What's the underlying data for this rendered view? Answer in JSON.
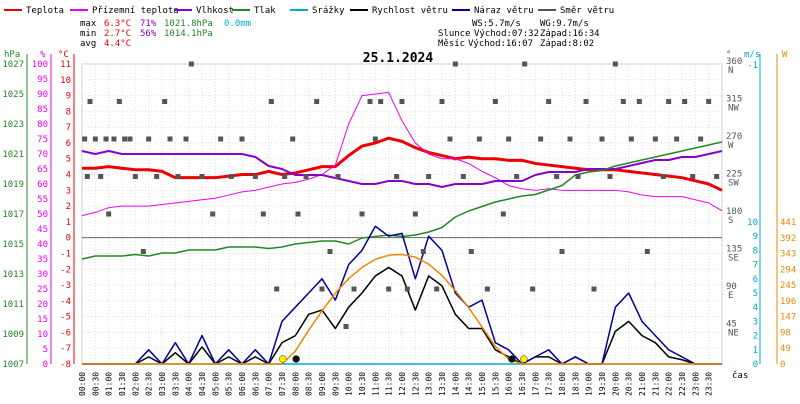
{
  "chart_data": {
    "type": "line",
    "title": "25.1.2024",
    "legend": [
      {
        "label": "Teplota",
        "color": "#ee0000"
      },
      {
        "label": "Přízemní teplota",
        "color": "#ee00ee"
      },
      {
        "label": "Vlhkost",
        "color": "#8800cc"
      },
      {
        "label": "Tlak",
        "color": "#228822"
      },
      {
        "label": "Srážky",
        "color": "#00aacc"
      },
      {
        "label": "Rychlost větru",
        "color": "#000000"
      },
      {
        "label": "Náraz větru",
        "color": "#000099"
      },
      {
        "label": "Směr větru",
        "color": "#555555"
      }
    ],
    "stats": {
      "rows": [
        {
          "label": "max",
          "temp": "6.3°C",
          "hum": "71%",
          "press": "1021.8hPa",
          "rain": "0.0mm"
        },
        {
          "label": "min",
          "temp": "2.7°C",
          "hum": "56%",
          "press": "1014.1hPa",
          "rain": ""
        },
        {
          "label": "avg",
          "temp": "4.4°C",
          "hum": "",
          "press": "",
          "rain": ""
        }
      ],
      "ws": "WS:5.7m/s",
      "wg": "WG:9.7m/s",
      "sun": {
        "label": "Slunce",
        "rise": "Východ:07:32",
        "set": "Západ:16:34"
      },
      "moon": {
        "label": "Měsíc",
        "rise": "Východ:16:07",
        "set": "Západ:8:02"
      }
    },
    "axes": {
      "hpa": {
        "label": "hPa",
        "ticks": [
          "1007",
          "1009",
          "1011",
          "1013",
          "1015",
          "1017",
          "1019",
          "1021",
          "1023",
          "1025",
          "1027"
        ]
      },
      "pct": {
        "label": "%",
        "ticks": [
          "0",
          "5",
          "10",
          "15",
          "20",
          "25",
          "30",
          "35",
          "40",
          "45",
          "50",
          "55",
          "60",
          "65",
          "70",
          "75",
          "80",
          "85",
          "90",
          "95",
          "100"
        ]
      },
      "temp": {
        "label": "°C",
        "ticks": [
          "-8",
          "-7",
          "-6",
          "-5",
          "-4",
          "-3",
          "-2",
          "-1",
          "0",
          "1",
          "2",
          "3",
          "4",
          "5",
          "6",
          "7",
          "8",
          "9",
          "10",
          "11"
        ],
        "ylim": [
          -8,
          11
        ]
      },
      "dir": {
        "label": "°",
        "ticks": [
          {
            "v": 45,
            "t": "45",
            "c": "NE"
          },
          {
            "v": 90,
            "t": "90",
            "c": "E"
          },
          {
            "v": 135,
            "t": "135",
            "c": "SE"
          },
          {
            "v": 180,
            "t": "180",
            "c": "S"
          },
          {
            "v": 225,
            "t": "225",
            "c": "SW"
          },
          {
            "v": 270,
            "t": "270",
            "c": "W"
          },
          {
            "v": 315,
            "t": "315",
            "c": "NW"
          },
          {
            "v": 360,
            "t": "360",
            "c": "N"
          }
        ]
      },
      "ms": {
        "label": "m/s",
        "ticks": [
          "0",
          "1",
          "2",
          "3",
          "4",
          "5",
          "6",
          "7",
          "8",
          "9",
          "10"
        ],
        "extra": "-1"
      },
      "wm2": {
        "label": "W",
        "ticks": [
          "0",
          "49",
          "98",
          "147",
          "196",
          "245",
          "294",
          "343",
          "392",
          "441"
        ]
      },
      "x": {
        "label": "čas",
        "ticks": [
          "00:00",
          "00:30",
          "01:00",
          "01:30",
          "02:00",
          "02:30",
          "03:00",
          "03:30",
          "04:00",
          "04:30",
          "05:00",
          "05:30",
          "06:00",
          "06:30",
          "07:00",
          "07:30",
          "08:00",
          "08:30",
          "09:00",
          "09:30",
          "10:00",
          "10:30",
          "11:00",
          "11:30",
          "12:00",
          "12:30",
          "13:00",
          "13:30",
          "14:00",
          "14:30",
          "15:00",
          "15:30",
          "16:00",
          "16:30",
          "17:00",
          "17:30",
          "18:00",
          "18:30",
          "19:00",
          "19:30",
          "20:00",
          "20:30",
          "21:00",
          "21:30",
          "22:00",
          "22:30",
          "23:00",
          "23:30"
        ]
      }
    },
    "hours": [
      0,
      0.5,
      1,
      1.5,
      2,
      2.5,
      3,
      3.5,
      4,
      4.5,
      5,
      5.5,
      6,
      6.5,
      7,
      7.5,
      8,
      8.5,
      9,
      9.5,
      10,
      10.5,
      11,
      11.5,
      12,
      12.5,
      13,
      13.5,
      14,
      14.5,
      15,
      15.5,
      16,
      16.5,
      17,
      17.5,
      18,
      18.5,
      19,
      19.5,
      20,
      20.5,
      21,
      21.5,
      22,
      22.5,
      23,
      23.5,
      24
    ],
    "series": [
      {
        "name": "Teplota",
        "axis": "temp",
        "color": "#ee0000",
        "width": 3,
        "values": [
          4.4,
          4.4,
          4.5,
          4.4,
          4.3,
          4.3,
          4.2,
          3.8,
          3.8,
          3.8,
          3.8,
          3.9,
          4.0,
          4.0,
          4.2,
          4.0,
          4.1,
          4.3,
          4.5,
          4.5,
          5.2,
          5.8,
          6.0,
          6.3,
          6.1,
          5.7,
          5.4,
          5.2,
          5.0,
          5.1,
          5.0,
          5.0,
          4.9,
          4.9,
          4.7,
          4.6,
          4.5,
          4.4,
          4.3,
          4.3,
          4.3,
          4.2,
          4.1,
          4.0,
          3.9,
          3.8,
          3.6,
          3.4,
          3.0
        ]
      },
      {
        "name": "Přízemní teplota",
        "axis": "temp",
        "color": "#ee00ee",
        "width": 1,
        "values": [
          1.4,
          1.6,
          1.9,
          2.0,
          2.0,
          2.0,
          2.1,
          2.2,
          2.3,
          2.4,
          2.5,
          2.7,
          2.9,
          3.0,
          3.2,
          3.4,
          3.5,
          3.7,
          4.0,
          4.6,
          7.2,
          9.0,
          9.1,
          9.2,
          7.4,
          6.0,
          5.3,
          5.0,
          5.0,
          4.7,
          4.2,
          3.8,
          3.3,
          3.1,
          3.0,
          3.1,
          3.0,
          3.0,
          3.0,
          3.0,
          3.0,
          2.9,
          2.7,
          2.6,
          2.6,
          2.6,
          2.4,
          2.2,
          1.7
        ]
      },
      {
        "name": "Vlhkost",
        "axis": "pct",
        "color": "#8800cc",
        "width": 2,
        "values": [
          71,
          70,
          71,
          70,
          70,
          70,
          70,
          70,
          70,
          70,
          70,
          70,
          70,
          69,
          66,
          65,
          63,
          63,
          63,
          62,
          61,
          60,
          60,
          61,
          61,
          60,
          60,
          59,
          60,
          60,
          60,
          61,
          61,
          61,
          63,
          64,
          64,
          64,
          65,
          65,
          65,
          66,
          67,
          68,
          68,
          69,
          69,
          70,
          71
        ]
      },
      {
        "name": "Tlak",
        "axis": "hpa",
        "color": "#228822",
        "width": 1.5,
        "values": [
          1014.0,
          1014.2,
          1014.2,
          1014.2,
          1014.3,
          1014.2,
          1014.4,
          1014.4,
          1014.6,
          1014.6,
          1014.6,
          1014.8,
          1014.8,
          1014.8,
          1014.7,
          1014.8,
          1015.0,
          1015.1,
          1015.2,
          1015.2,
          1015.0,
          1015.4,
          1015.5,
          1015.6,
          1015.5,
          1015.6,
          1015.8,
          1016.1,
          1016.8,
          1017.2,
          1017.5,
          1017.8,
          1018.0,
          1018.2,
          1018.3,
          1018.6,
          1018.9,
          1019.6,
          1019.8,
          1019.9,
          1020.2,
          1020.4,
          1020.6,
          1020.8,
          1021.0,
          1021.2,
          1021.4,
          1021.6,
          1021.8
        ]
      },
      {
        "name": "Rychlost větru",
        "axis": "ms",
        "color": "#000000",
        "width": 1.5,
        "values": [
          0,
          0,
          0,
          0,
          0,
          0.5,
          0,
          0.8,
          0,
          1.2,
          0,
          0.5,
          0,
          0.5,
          0,
          1.5,
          2.0,
          3.5,
          3.8,
          2.5,
          4.0,
          5.0,
          6.2,
          6.8,
          6.2,
          3.8,
          6.2,
          5.5,
          3.5,
          2.5,
          2.5,
          1.0,
          0.5,
          0,
          0.5,
          0.5,
          0,
          0.5,
          0,
          0,
          2.3,
          3.0,
          2.0,
          1.5,
          0.5,
          0.3,
          0,
          0,
          0
        ]
      },
      {
        "name": "Náraz větru",
        "axis": "ms",
        "color": "#000099",
        "width": 1.5,
        "values": [
          0,
          0,
          0,
          0,
          0,
          1.0,
          0,
          1.5,
          0,
          2.0,
          0,
          1.0,
          0,
          1.0,
          0,
          3.0,
          4.0,
          5.0,
          6.0,
          4.5,
          7.0,
          8.0,
          9.7,
          9.0,
          9.2,
          6.0,
          9.0,
          8.0,
          5.0,
          4.0,
          4.5,
          1.5,
          1.0,
          0,
          0.5,
          1.0,
          0,
          0.5,
          0,
          0,
          4.0,
          5.0,
          3.0,
          2.0,
          1.0,
          0.5,
          0,
          0,
          0
        ]
      },
      {
        "name": "Srážky",
        "axis": "ms",
        "color": "#00aacc",
        "width": 1.5,
        "values": [
          0,
          0,
          0,
          0,
          0,
          0,
          0,
          0,
          0,
          0,
          0,
          0,
          0,
          0,
          0,
          0,
          0,
          0,
          0,
          0,
          0,
          0,
          0,
          0,
          0,
          0,
          0,
          0,
          0,
          0,
          0,
          0,
          0,
          0,
          0,
          0,
          0,
          0,
          0,
          0,
          0,
          0,
          0,
          0,
          0,
          0,
          0,
          0,
          0
        ]
      },
      {
        "name": "",
        "axis": "wm2",
        "color": "#ee8800",
        "width": 1.5,
        "values": [
          0,
          0,
          0,
          0,
          0,
          0,
          0,
          0,
          0,
          0,
          0,
          0,
          0,
          0,
          0,
          0,
          40,
          105,
          165,
          220,
          265,
          300,
          325,
          338,
          340,
          332,
          310,
          275,
          228,
          175,
          115,
          55,
          15,
          0,
          0,
          0,
          0,
          0,
          0,
          0,
          0,
          0,
          0,
          0,
          0,
          0,
          0,
          0,
          0
        ]
      }
    ],
    "wind_dir": {
      "color": "#555555",
      "points": [
        [
          0.1,
          270
        ],
        [
          0.2,
          225
        ],
        [
          0.3,
          315
        ],
        [
          0.5,
          270
        ],
        [
          0.7,
          225
        ],
        [
          0.9,
          270
        ],
        [
          1.0,
          180
        ],
        [
          1.2,
          270
        ],
        [
          1.4,
          315
        ],
        [
          1.6,
          270
        ],
        [
          1.8,
          270
        ],
        [
          2.0,
          225
        ],
        [
          2.3,
          135
        ],
        [
          2.5,
          270
        ],
        [
          2.8,
          225
        ],
        [
          3.1,
          315
        ],
        [
          3.3,
          270
        ],
        [
          3.6,
          225
        ],
        [
          3.9,
          270
        ],
        [
          4.1,
          360
        ],
        [
          4.5,
          225
        ],
        [
          4.9,
          180
        ],
        [
          5.2,
          270
        ],
        [
          5.6,
          225
        ],
        [
          6.0,
          270
        ],
        [
          6.5,
          225
        ],
        [
          6.8,
          180
        ],
        [
          7.1,
          315
        ],
        [
          7.3,
          90
        ],
        [
          7.6,
          225
        ],
        [
          7.9,
          270
        ],
        [
          8.1,
          180
        ],
        [
          8.4,
          225
        ],
        [
          8.8,
          315
        ],
        [
          9.0,
          90
        ],
        [
          9.3,
          135
        ],
        [
          9.6,
          225
        ],
        [
          9.9,
          45
        ],
        [
          10.2,
          90
        ],
        [
          10.5,
          180
        ],
        [
          10.8,
          315
        ],
        [
          11.0,
          270
        ],
        [
          11.2,
          315
        ],
        [
          11.5,
          90
        ],
        [
          11.8,
          225
        ],
        [
          12.0,
          315
        ],
        [
          12.2,
          90
        ],
        [
          12.5,
          180
        ],
        [
          12.8,
          135
        ],
        [
          13.0,
          225
        ],
        [
          13.3,
          90
        ],
        [
          13.5,
          315
        ],
        [
          13.8,
          270
        ],
        [
          14.0,
          360
        ],
        [
          14.3,
          225
        ],
        [
          14.6,
          135
        ],
        [
          14.9,
          270
        ],
        [
          15.2,
          90
        ],
        [
          15.5,
          315
        ],
        [
          15.8,
          180
        ],
        [
          16.0,
          270
        ],
        [
          16.3,
          225
        ],
        [
          16.6,
          360
        ],
        [
          16.9,
          90
        ],
        [
          17.2,
          270
        ],
        [
          17.5,
          315
        ],
        [
          17.8,
          225
        ],
        [
          18.0,
          135
        ],
        [
          18.3,
          270
        ],
        [
          18.6,
          225
        ],
        [
          18.9,
          315
        ],
        [
          19.2,
          90
        ],
        [
          19.5,
          270
        ],
        [
          19.8,
          225
        ],
        [
          20.0,
          360
        ],
        [
          20.3,
          315
        ],
        [
          20.6,
          270
        ],
        [
          20.9,
          315
        ],
        [
          21.2,
          135
        ],
        [
          21.5,
          270
        ],
        [
          21.8,
          225
        ],
        [
          22.0,
          315
        ],
        [
          22.3,
          270
        ],
        [
          22.6,
          315
        ],
        [
          22.9,
          225
        ],
        [
          23.2,
          270
        ],
        [
          23.5,
          315
        ],
        [
          23.8,
          225
        ]
      ]
    },
    "markers": [
      {
        "x": 7.53,
        "color": "#ffee00"
      },
      {
        "x": 8.03,
        "color": "#111111"
      },
      {
        "x": 16.12,
        "color": "#111111"
      },
      {
        "x": 16.57,
        "color": "#ffee00"
      }
    ]
  }
}
